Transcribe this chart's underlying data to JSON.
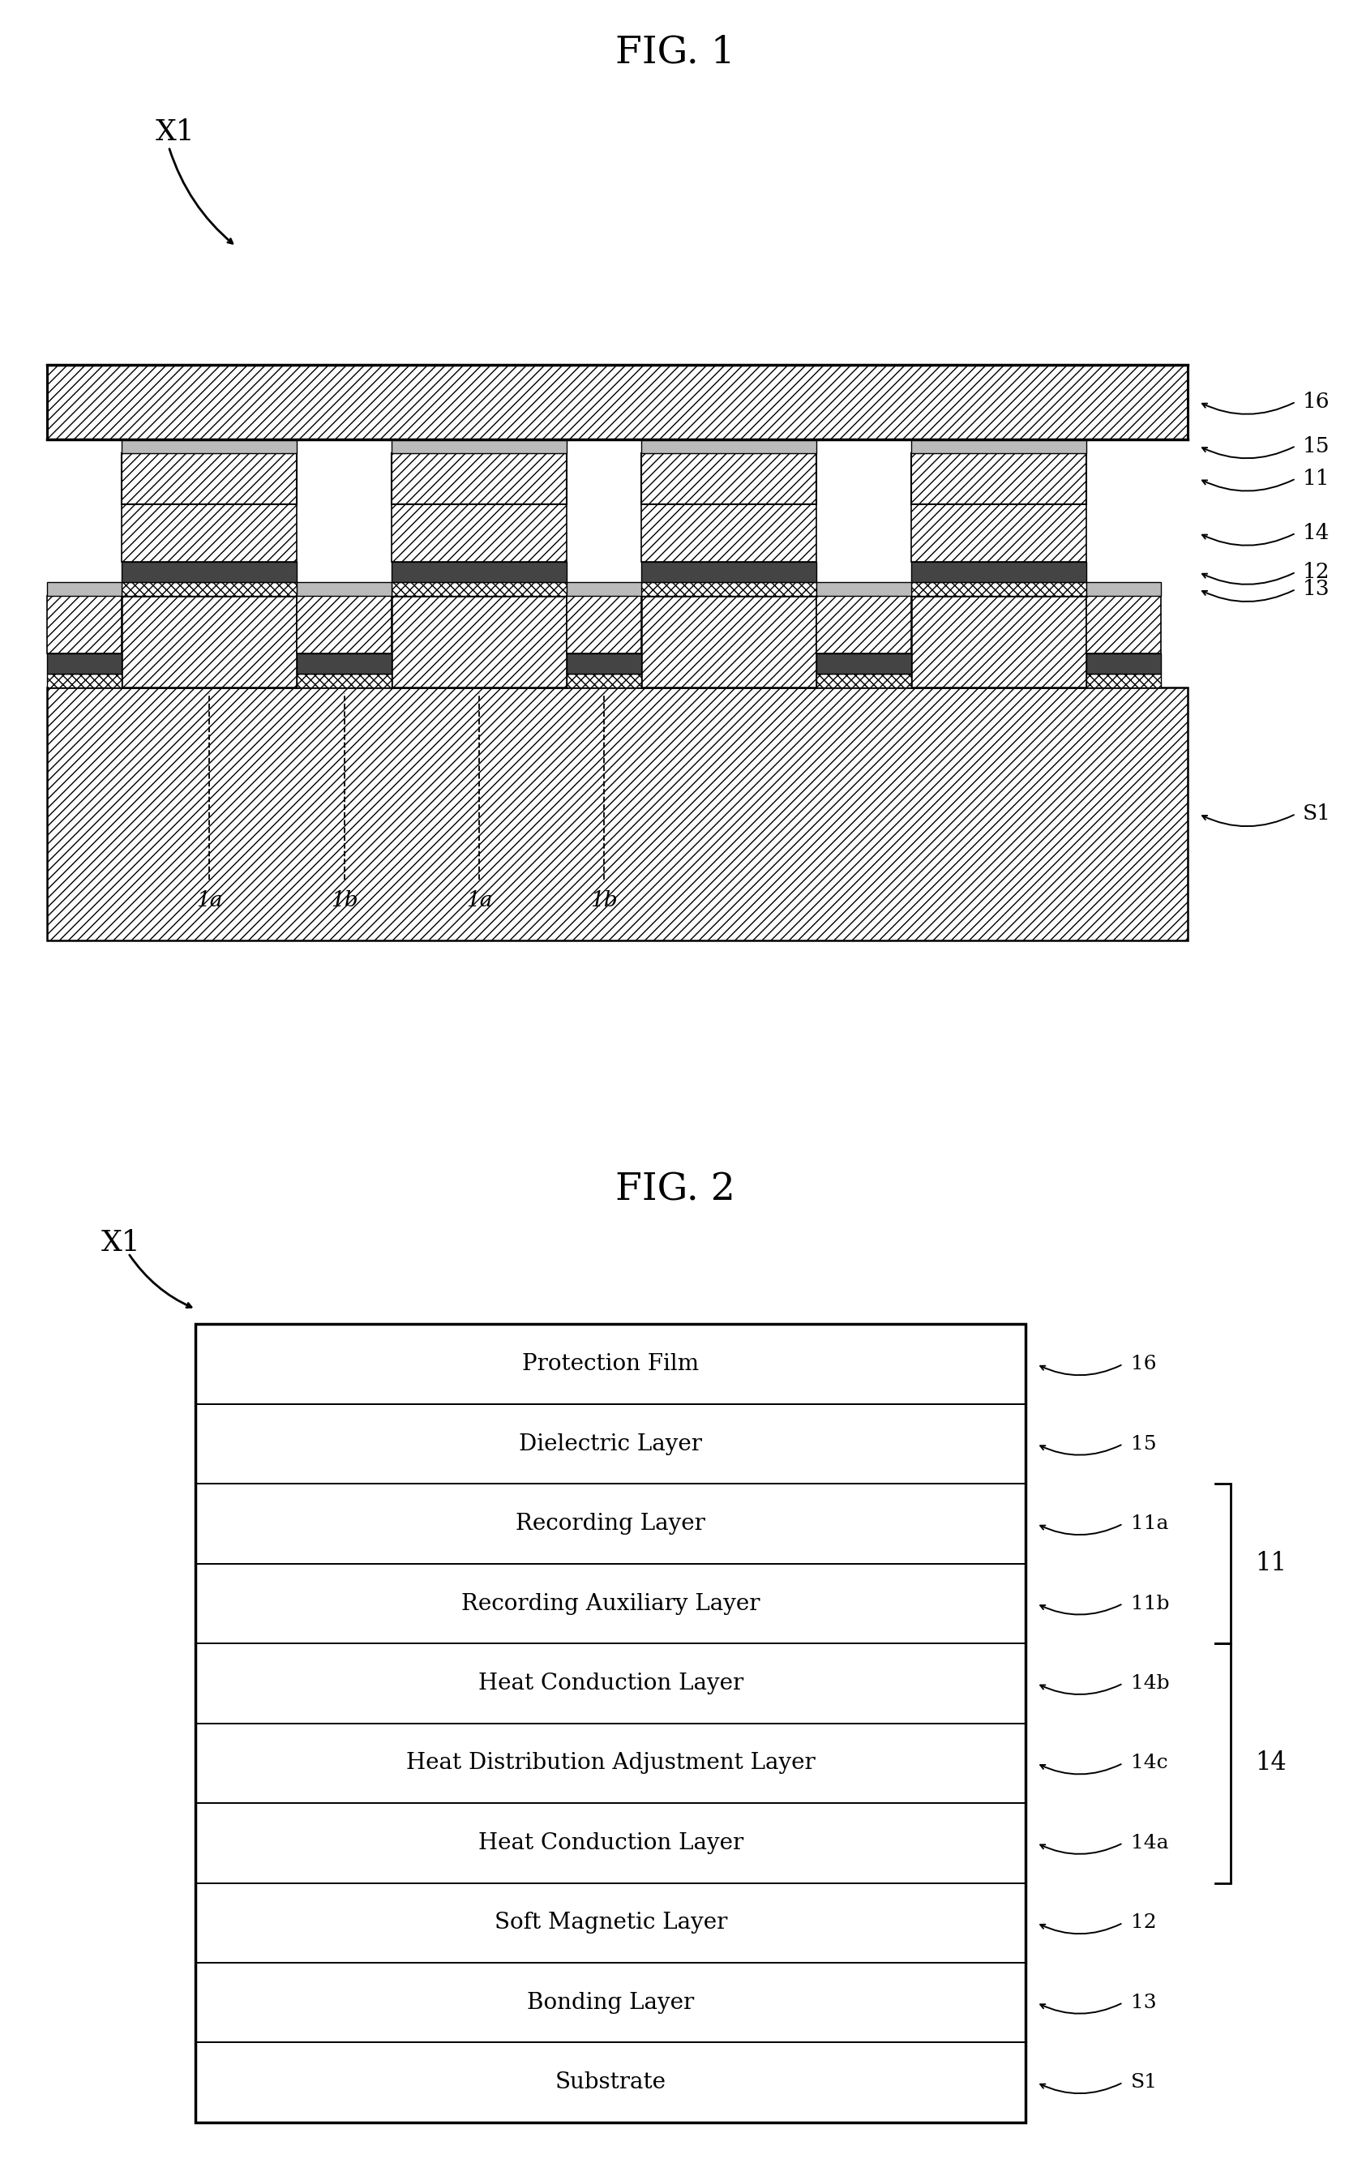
{
  "fig1_title": "FIG. 1",
  "fig2_title": "FIG. 2",
  "fig2_layers": [
    {
      "label": "Protection Film",
      "ref": "16"
    },
    {
      "label": "Dielectric Layer",
      "ref": "15"
    },
    {
      "label": "Recording Layer",
      "ref": "11a"
    },
    {
      "label": "Recording Auxiliary Layer",
      "ref": "11b"
    },
    {
      "label": "Heat Conduction Layer",
      "ref": "14b"
    },
    {
      "label": "Heat Distribution Adjustment Layer",
      "ref": "14c"
    },
    {
      "label": "Heat Conduction Layer",
      "ref": "14a"
    },
    {
      "label": "Soft Magnetic Layer",
      "ref": "12"
    },
    {
      "label": "Bonding Layer",
      "ref": "13"
    },
    {
      "label": "Substrate",
      "ref": "S1"
    }
  ],
  "bg_color": "#ffffff",
  "text_color": "#000000",
  "fig1_ref_labels_right": [
    "16",
    "15",
    "11",
    "14",
    "12",
    "13"
  ],
  "fig1_ref_label_s1": "S1",
  "fig1_sublabels": [
    "1b",
    "1b",
    "1a",
    "1b"
  ],
  "group11_label": "11",
  "group14_label": "14"
}
